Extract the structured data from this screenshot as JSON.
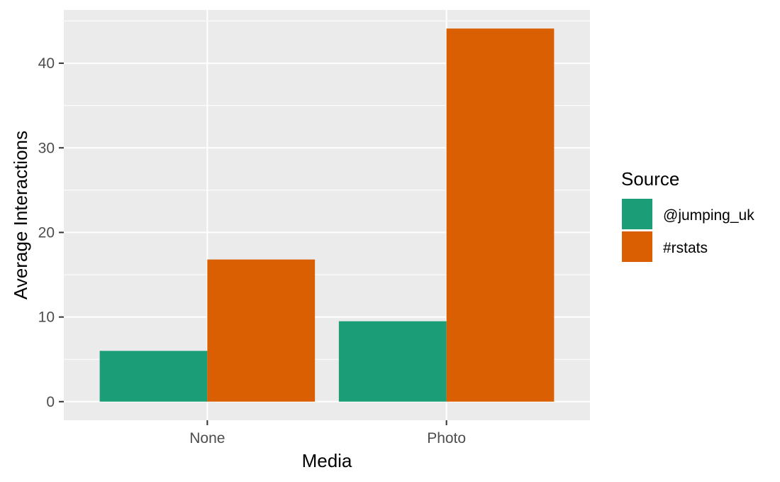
{
  "chart_data": {
    "type": "bar",
    "title": "",
    "xlabel": "Media",
    "ylabel": "Average Interactions",
    "categories": [
      "None",
      "Photo"
    ],
    "series": [
      {
        "name": "@jumping_uk",
        "values": [
          6.0,
          9.5
        ],
        "color": "#1b9e77"
      },
      {
        "name": "#rstats",
        "values": [
          16.8,
          44.1
        ],
        "color": "#d95f02"
      }
    ],
    "ylim": [
      -2.2,
      46.3
    ],
    "yticks": [
      0,
      10,
      20,
      30,
      40
    ],
    "grid": true,
    "legend": {
      "title": "Source",
      "placement": "right"
    },
    "panel_background": "#ebebeb",
    "grid_color": "#ffffff"
  }
}
